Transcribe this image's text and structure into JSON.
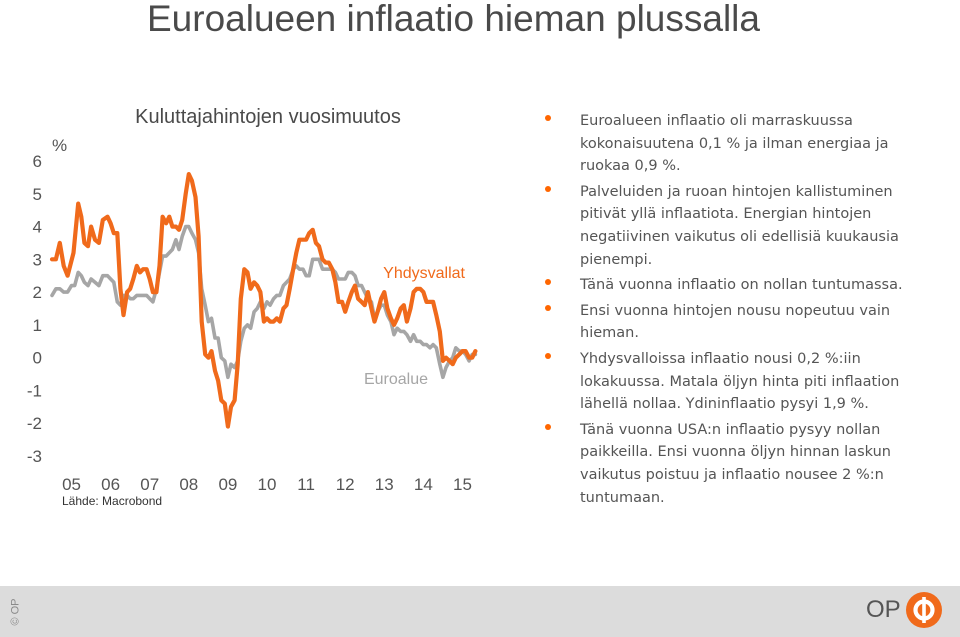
{
  "page": {
    "title": "Euroalueen inflaatio hieman plussalla"
  },
  "bullets": [
    "Euroalueen inflaatio oli marraskuussa kokonaisuutena 0,1 % ja ilman energiaa ja ruokaa 0,9 %.",
    "Palveluiden ja ruoan hintojen kallistuminen pitivät yllä inflaatiota. Energian hintojen negatiivinen vaikutus oli edellisiä kuukausia pienempi.",
    "Tänä vuonna inflaatio on nollan tuntumassa.",
    "Ensi vuonna hintojen nousu nopeutuu vain hieman.",
    "Yhdysvalloissa inflaatio nousi 0,2 %:iin lokakuussa. Matala öljyn hinta piti inflaation lähellä nollaa. Ydininflaatio pysyi 1,9 %.",
    "Tänä vuonna USA:n inflaatio pysyy nollan paikkeilla. Ensi vuonna öljyn hinnan laskun vaikutus poistuu ja inflaatio nousee 2 %:n tuntumaan."
  ],
  "footer": {
    "copyright": "© OP",
    "logo_text": "OP"
  },
  "colors": {
    "us_series": "#f06a1b",
    "ea_series": "#a6a6a6",
    "bullet": "#ff6600",
    "logo": "#f06a1b"
  },
  "chart_data": {
    "type": "line",
    "title": "Kuluttajahintojen vuosimuutos",
    "ylabel": "%",
    "source": "Lähde: Macrobond",
    "ylim": [
      -3,
      6
    ],
    "yticks": [
      "6",
      "5",
      "4",
      "3",
      "2",
      "1",
      "0",
      "-1",
      "-2",
      "-3"
    ],
    "xticks": [
      "05",
      "06",
      "07",
      "08",
      "09",
      "10",
      "11",
      "12",
      "13",
      "14",
      "15"
    ],
    "x_start": 2005.0,
    "x_end": 2016.0,
    "grid": false,
    "legend": "direct labels on lines",
    "series": [
      {
        "name": "Yhdysvallat",
        "points": [
          [
            2005.0,
            3.0
          ],
          [
            2005.1,
            3.0
          ],
          [
            2005.2,
            3.5
          ],
          [
            2005.3,
            2.8
          ],
          [
            2005.4,
            2.5
          ],
          [
            2005.55,
            3.2
          ],
          [
            2005.67,
            4.7
          ],
          [
            2005.75,
            4.3
          ],
          [
            2005.83,
            3.5
          ],
          [
            2005.92,
            3.4
          ],
          [
            2006.0,
            4.0
          ],
          [
            2006.1,
            3.6
          ],
          [
            2006.2,
            3.5
          ],
          [
            2006.3,
            4.2
          ],
          [
            2006.42,
            4.3
          ],
          [
            2006.5,
            4.1
          ],
          [
            2006.58,
            3.8
          ],
          [
            2006.67,
            3.8
          ],
          [
            2006.75,
            2.1
          ],
          [
            2006.83,
            1.3
          ],
          [
            2006.92,
            2.0
          ],
          [
            2007.0,
            2.1
          ],
          [
            2007.08,
            2.4
          ],
          [
            2007.17,
            2.8
          ],
          [
            2007.25,
            2.6
          ],
          [
            2007.33,
            2.7
          ],
          [
            2007.42,
            2.7
          ],
          [
            2007.5,
            2.4
          ],
          [
            2007.58,
            2.0
          ],
          [
            2007.67,
            2.0
          ],
          [
            2007.75,
            2.8
          ],
          [
            2007.83,
            4.3
          ],
          [
            2007.92,
            4.1
          ],
          [
            2008.0,
            4.3
          ],
          [
            2008.08,
            4.0
          ],
          [
            2008.17,
            4.0
          ],
          [
            2008.25,
            3.9
          ],
          [
            2008.33,
            4.2
          ],
          [
            2008.42,
            5.0
          ],
          [
            2008.5,
            5.6
          ],
          [
            2008.58,
            5.4
          ],
          [
            2008.67,
            4.9
          ],
          [
            2008.75,
            3.7
          ],
          [
            2008.83,
            1.1
          ],
          [
            2008.92,
            0.1
          ],
          [
            2009.0,
            0.0
          ],
          [
            2009.08,
            0.2
          ],
          [
            2009.17,
            -0.4
          ],
          [
            2009.25,
            -0.7
          ],
          [
            2009.33,
            -1.3
          ],
          [
            2009.42,
            -1.4
          ],
          [
            2009.5,
            -2.1
          ],
          [
            2009.58,
            -1.5
          ],
          [
            2009.67,
            -1.3
          ],
          [
            2009.75,
            -0.2
          ],
          [
            2009.83,
            1.8
          ],
          [
            2009.92,
            2.7
          ],
          [
            2010.0,
            2.6
          ],
          [
            2010.08,
            2.1
          ],
          [
            2010.17,
            2.3
          ],
          [
            2010.25,
            2.2
          ],
          [
            2010.33,
            2.0
          ],
          [
            2010.42,
            1.1
          ],
          [
            2010.5,
            1.2
          ],
          [
            2010.58,
            1.1
          ],
          [
            2010.67,
            1.1
          ],
          [
            2010.75,
            1.2
          ],
          [
            2010.83,
            1.1
          ],
          [
            2010.92,
            1.5
          ],
          [
            2011.0,
            1.6
          ],
          [
            2011.08,
            2.1
          ],
          [
            2011.17,
            2.7
          ],
          [
            2011.25,
            3.2
          ],
          [
            2011.33,
            3.6
          ],
          [
            2011.42,
            3.6
          ],
          [
            2011.5,
            3.6
          ],
          [
            2011.58,
            3.8
          ],
          [
            2011.67,
            3.9
          ],
          [
            2011.75,
            3.5
          ],
          [
            2011.83,
            3.4
          ],
          [
            2011.92,
            3.0
          ],
          [
            2012.0,
            2.9
          ],
          [
            2012.08,
            2.9
          ],
          [
            2012.17,
            2.7
          ],
          [
            2012.25,
            2.3
          ],
          [
            2012.33,
            1.7
          ],
          [
            2012.42,
            1.7
          ],
          [
            2012.5,
            1.4
          ],
          [
            2012.58,
            1.7
          ],
          [
            2012.67,
            2.0
          ],
          [
            2012.75,
            2.2
          ],
          [
            2012.83,
            1.8
          ],
          [
            2012.92,
            1.7
          ],
          [
            2013.0,
            1.6
          ],
          [
            2013.08,
            2.0
          ],
          [
            2013.17,
            1.5
          ],
          [
            2013.25,
            1.1
          ],
          [
            2013.33,
            1.4
          ],
          [
            2013.42,
            1.8
          ],
          [
            2013.5,
            2.0
          ],
          [
            2013.58,
            1.5
          ],
          [
            2013.67,
            1.2
          ],
          [
            2013.75,
            1.0
          ],
          [
            2013.83,
            1.2
          ],
          [
            2013.92,
            1.5
          ],
          [
            2014.0,
            1.6
          ],
          [
            2014.08,
            1.1
          ],
          [
            2014.17,
            1.5
          ],
          [
            2014.25,
            2.0
          ],
          [
            2014.33,
            2.1
          ],
          [
            2014.42,
            2.1
          ],
          [
            2014.5,
            2.0
          ],
          [
            2014.58,
            1.7
          ],
          [
            2014.67,
            1.7
          ],
          [
            2014.75,
            1.7
          ],
          [
            2014.83,
            1.3
          ],
          [
            2014.92,
            0.8
          ],
          [
            2015.0,
            -0.1
          ],
          [
            2015.08,
            0.0
          ],
          [
            2015.17,
            -0.1
          ],
          [
            2015.25,
            -0.2
          ],
          [
            2015.33,
            0.0
          ],
          [
            2015.42,
            0.1
          ],
          [
            2015.5,
            0.2
          ],
          [
            2015.58,
            0.2
          ],
          [
            2015.67,
            0.0
          ],
          [
            2015.75,
            0.0
          ],
          [
            2015.83,
            0.2
          ]
        ]
      },
      {
        "name": "Euroalue",
        "points": [
          [
            2005.0,
            1.9
          ],
          [
            2005.1,
            2.1
          ],
          [
            2005.2,
            2.1
          ],
          [
            2005.3,
            2.0
          ],
          [
            2005.4,
            2.0
          ],
          [
            2005.5,
            2.2
          ],
          [
            2005.58,
            2.2
          ],
          [
            2005.67,
            2.6
          ],
          [
            2005.75,
            2.5
          ],
          [
            2005.83,
            2.3
          ],
          [
            2005.92,
            2.2
          ],
          [
            2006.0,
            2.4
          ],
          [
            2006.1,
            2.3
          ],
          [
            2006.2,
            2.2
          ],
          [
            2006.3,
            2.5
          ],
          [
            2006.42,
            2.5
          ],
          [
            2006.5,
            2.4
          ],
          [
            2006.58,
            2.3
          ],
          [
            2006.67,
            1.7
          ],
          [
            2006.75,
            1.6
          ],
          [
            2006.83,
            1.9
          ],
          [
            2006.92,
            1.9
          ],
          [
            2007.0,
            1.8
          ],
          [
            2007.08,
            1.8
          ],
          [
            2007.17,
            1.9
          ],
          [
            2007.25,
            1.9
          ],
          [
            2007.33,
            1.9
          ],
          [
            2007.42,
            1.9
          ],
          [
            2007.5,
            1.8
          ],
          [
            2007.58,
            1.7
          ],
          [
            2007.67,
            2.1
          ],
          [
            2007.75,
            2.6
          ],
          [
            2007.83,
            3.1
          ],
          [
            2007.92,
            3.1
          ],
          [
            2008.0,
            3.2
          ],
          [
            2008.08,
            3.3
          ],
          [
            2008.17,
            3.6
          ],
          [
            2008.25,
            3.3
          ],
          [
            2008.33,
            3.7
          ],
          [
            2008.42,
            4.0
          ],
          [
            2008.5,
            4.0
          ],
          [
            2008.58,
            3.8
          ],
          [
            2008.67,
            3.6
          ],
          [
            2008.75,
            3.2
          ],
          [
            2008.83,
            2.1
          ],
          [
            2008.92,
            1.6
          ],
          [
            2009.0,
            1.1
          ],
          [
            2009.08,
            1.2
          ],
          [
            2009.17,
            0.6
          ],
          [
            2009.25,
            0.6
          ],
          [
            2009.33,
            0.0
          ],
          [
            2009.42,
            -0.1
          ],
          [
            2009.5,
            -0.6
          ],
          [
            2009.58,
            -0.2
          ],
          [
            2009.67,
            -0.3
          ],
          [
            2009.75,
            -0.1
          ],
          [
            2009.83,
            0.5
          ],
          [
            2009.92,
            0.9
          ],
          [
            2010.0,
            1.0
          ],
          [
            2010.08,
            0.9
          ],
          [
            2010.17,
            1.4
          ],
          [
            2010.25,
            1.5
          ],
          [
            2010.33,
            1.7
          ],
          [
            2010.42,
            1.5
          ],
          [
            2010.5,
            1.7
          ],
          [
            2010.58,
            1.6
          ],
          [
            2010.67,
            1.8
          ],
          [
            2010.75,
            1.9
          ],
          [
            2010.83,
            1.9
          ],
          [
            2010.92,
            2.2
          ],
          [
            2011.0,
            2.3
          ],
          [
            2011.08,
            2.4
          ],
          [
            2011.17,
            2.7
          ],
          [
            2011.25,
            2.8
          ],
          [
            2011.33,
            2.7
          ],
          [
            2011.42,
            2.7
          ],
          [
            2011.5,
            2.5
          ],
          [
            2011.58,
            2.5
          ],
          [
            2011.67,
            3.0
          ],
          [
            2011.75,
            3.0
          ],
          [
            2011.83,
            3.0
          ],
          [
            2011.92,
            2.7
          ],
          [
            2012.0,
            2.7
          ],
          [
            2012.08,
            2.7
          ],
          [
            2012.17,
            2.7
          ],
          [
            2012.25,
            2.6
          ],
          [
            2012.33,
            2.4
          ],
          [
            2012.42,
            2.4
          ],
          [
            2012.5,
            2.4
          ],
          [
            2012.58,
            2.6
          ],
          [
            2012.67,
            2.6
          ],
          [
            2012.75,
            2.5
          ],
          [
            2012.83,
            2.2
          ],
          [
            2012.92,
            2.2
          ],
          [
            2013.0,
            2.0
          ],
          [
            2013.08,
            1.8
          ],
          [
            2013.17,
            1.7
          ],
          [
            2013.25,
            1.2
          ],
          [
            2013.33,
            1.4
          ],
          [
            2013.42,
            1.6
          ],
          [
            2013.5,
            1.6
          ],
          [
            2013.58,
            1.3
          ],
          [
            2013.67,
            1.1
          ],
          [
            2013.75,
            0.7
          ],
          [
            2013.83,
            0.9
          ],
          [
            2013.92,
            0.8
          ],
          [
            2014.0,
            0.8
          ],
          [
            2014.08,
            0.7
          ],
          [
            2014.17,
            0.5
          ],
          [
            2014.25,
            0.7
          ],
          [
            2014.33,
            0.5
          ],
          [
            2014.42,
            0.5
          ],
          [
            2014.5,
            0.4
          ],
          [
            2014.58,
            0.4
          ],
          [
            2014.67,
            0.3
          ],
          [
            2014.75,
            0.4
          ],
          [
            2014.83,
            0.3
          ],
          [
            2014.92,
            -0.2
          ],
          [
            2015.0,
            -0.6
          ],
          [
            2015.08,
            -0.3
          ],
          [
            2015.17,
            -0.1
          ],
          [
            2015.25,
            0.0
          ],
          [
            2015.33,
            0.3
          ],
          [
            2015.42,
            0.2
          ],
          [
            2015.5,
            0.2
          ],
          [
            2015.58,
            0.1
          ],
          [
            2015.67,
            -0.1
          ],
          [
            2015.75,
            0.1
          ],
          [
            2015.83,
            0.1
          ]
        ]
      }
    ]
  }
}
